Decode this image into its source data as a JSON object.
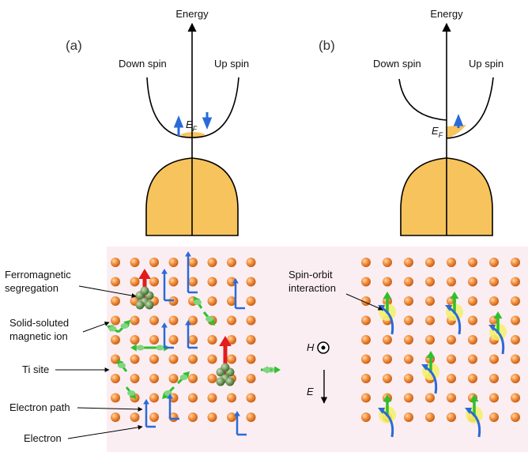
{
  "panels": [
    {
      "label": "(a)",
      "axis_label": "Energy",
      "left_label": "Down spin",
      "right_label": "Up spin",
      "fermi_label": {
        "main": "E",
        "sub": "F"
      }
    },
    {
      "label": "(b)",
      "axis_label": "Energy",
      "left_label": "Down spin",
      "right_label": "Up spin",
      "fermi_label": {
        "main": "E",
        "sub": "F"
      }
    }
  ],
  "lattice": {
    "callouts": [
      {
        "lines": [
          "Ferromagnetic",
          "segregation"
        ]
      },
      {
        "lines": [
          "Solid-soluted",
          "magnetic ion"
        ]
      },
      {
        "lines": [
          "Ti site"
        ]
      },
      {
        "lines": [
          "Electron path"
        ]
      },
      {
        "lines": [
          "Electron"
        ]
      },
      {
        "lines": [
          "Spin-orbit",
          "interaction"
        ]
      }
    ],
    "field_label": "H",
    "electric_label": "E"
  }
}
